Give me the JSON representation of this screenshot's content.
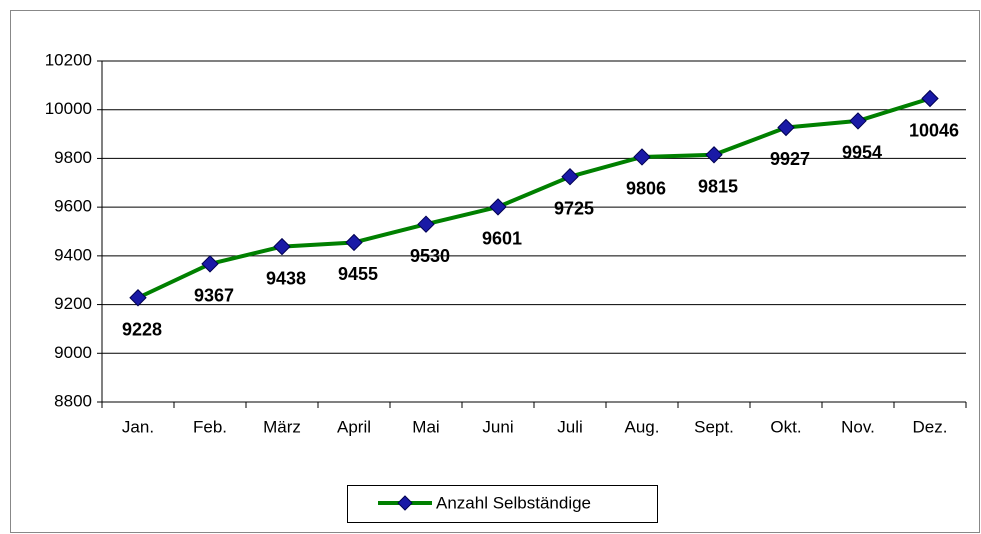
{
  "chart_data": {
    "type": "line",
    "categories": [
      "Jan.",
      "Feb.",
      "März",
      "April",
      "Mai",
      "Juni",
      "Juli",
      "Aug.",
      "Sept.",
      "Okt.",
      "Nov.",
      "Dez."
    ],
    "series": [
      {
        "name": "Anzahl Selbständige",
        "color": "#008000",
        "marker_color": "#1a1aa6",
        "values": [
          9228,
          9367,
          9438,
          9455,
          9530,
          9601,
          9725,
          9806,
          9815,
          9927,
          9954,
          10046
        ]
      }
    ],
    "ylim": [
      8800,
      10200
    ],
    "yticks": [
      8800,
      9000,
      9200,
      9400,
      9600,
      9800,
      10000,
      10200
    ],
    "grid": true,
    "legend": "bottom"
  }
}
